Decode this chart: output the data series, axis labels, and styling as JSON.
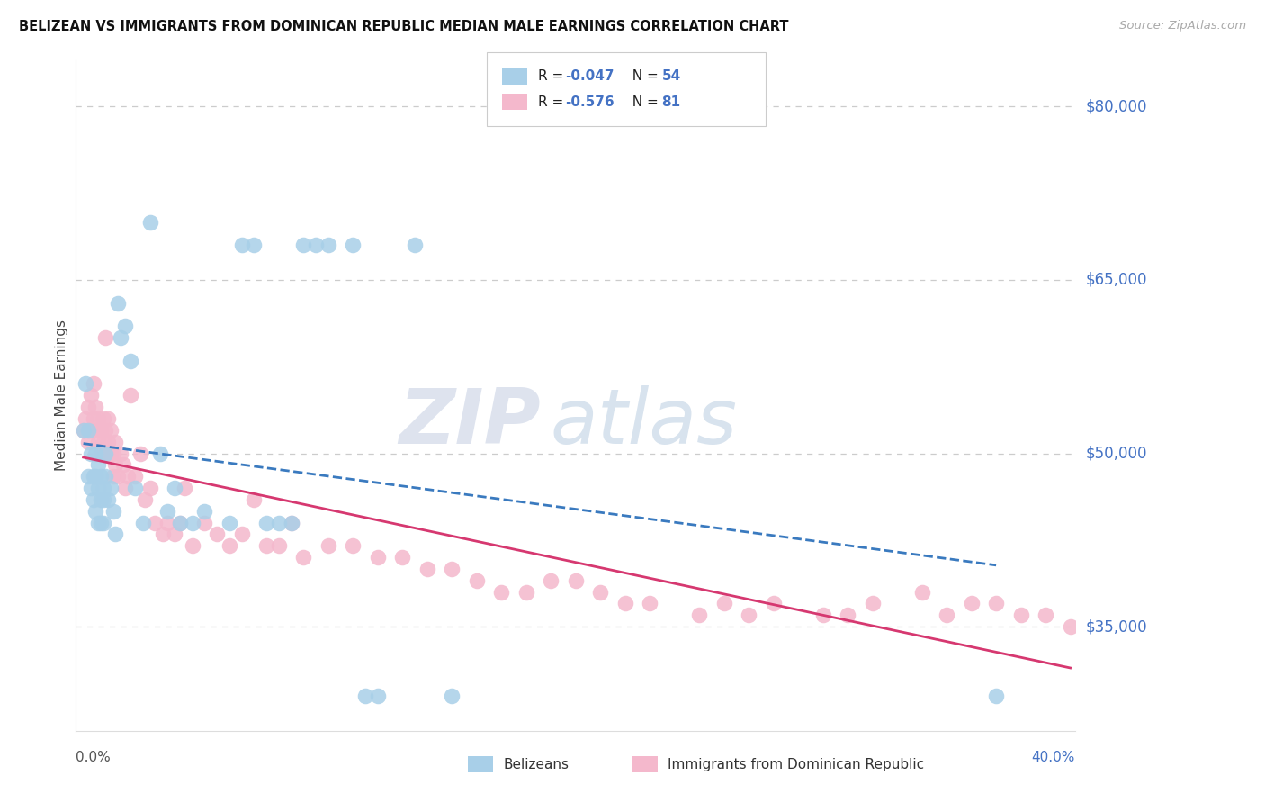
{
  "title": "BELIZEAN VS IMMIGRANTS FROM DOMINICAN REPUBLIC MEDIAN MALE EARNINGS CORRELATION CHART",
  "source": "Source: ZipAtlas.com",
  "ylabel": "Median Male Earnings",
  "yticks": [
    35000,
    50000,
    65000,
    80000
  ],
  "ytick_labels": [
    "$35,000",
    "$50,000",
    "$65,000",
    "$80,000"
  ],
  "xlim": [
    -0.002,
    0.402
  ],
  "ylim": [
    26000,
    84000
  ],
  "watermark_zip": "ZIP",
  "watermark_atlas": "atlas",
  "r1": "-0.047",
  "n1": "54",
  "r2": "-0.576",
  "n2": "81",
  "color_blue": "#a8cfe8",
  "color_pink": "#f4b8cc",
  "color_blue_line": "#3a7abf",
  "color_pink_line": "#d63870",
  "color_blue_text": "#4472C4",
  "color_gray_text": "#aaaaaa",
  "background": "#ffffff",
  "blue_x": [
    0.001,
    0.002,
    0.003,
    0.003,
    0.004,
    0.004,
    0.005,
    0.005,
    0.006,
    0.006,
    0.006,
    0.007,
    0.007,
    0.007,
    0.008,
    0.008,
    0.008,
    0.009,
    0.009,
    0.009,
    0.01,
    0.01,
    0.011,
    0.012,
    0.013,
    0.014,
    0.015,
    0.016,
    0.018,
    0.02,
    0.022,
    0.025,
    0.028,
    0.032,
    0.035,
    0.038,
    0.04,
    0.045,
    0.05,
    0.06,
    0.065,
    0.07,
    0.075,
    0.08,
    0.085,
    0.09,
    0.095,
    0.1,
    0.11,
    0.115,
    0.12,
    0.135,
    0.15,
    0.37
  ],
  "blue_y": [
    52000,
    56000,
    48000,
    52000,
    47000,
    50000,
    48000,
    46000,
    50000,
    48000,
    45000,
    49000,
    47000,
    44000,
    48000,
    46000,
    44000,
    47000,
    46000,
    44000,
    50000,
    48000,
    46000,
    47000,
    45000,
    43000,
    63000,
    60000,
    61000,
    58000,
    47000,
    44000,
    70000,
    50000,
    45000,
    47000,
    44000,
    44000,
    45000,
    44000,
    68000,
    68000,
    44000,
    44000,
    44000,
    68000,
    68000,
    68000,
    68000,
    29000,
    29000,
    68000,
    29000,
    29000
  ],
  "pink_x": [
    0.001,
    0.002,
    0.003,
    0.003,
    0.004,
    0.004,
    0.005,
    0.005,
    0.006,
    0.006,
    0.007,
    0.007,
    0.008,
    0.008,
    0.009,
    0.009,
    0.01,
    0.01,
    0.011,
    0.011,
    0.012,
    0.012,
    0.013,
    0.013,
    0.014,
    0.014,
    0.015,
    0.016,
    0.017,
    0.018,
    0.019,
    0.02,
    0.022,
    0.024,
    0.026,
    0.028,
    0.03,
    0.033,
    0.035,
    0.038,
    0.04,
    0.042,
    0.045,
    0.05,
    0.055,
    0.06,
    0.065,
    0.07,
    0.075,
    0.08,
    0.085,
    0.09,
    0.1,
    0.11,
    0.12,
    0.13,
    0.14,
    0.15,
    0.16,
    0.17,
    0.18,
    0.19,
    0.2,
    0.21,
    0.22,
    0.23,
    0.25,
    0.26,
    0.27,
    0.28,
    0.3,
    0.31,
    0.32,
    0.34,
    0.35,
    0.36,
    0.37,
    0.38,
    0.39,
    0.4,
    0.01
  ],
  "pink_y": [
    52000,
    53000,
    51000,
    54000,
    52000,
    55000,
    53000,
    56000,
    52000,
    54000,
    51000,
    53000,
    50000,
    52000,
    51000,
    53000,
    50000,
    52000,
    51000,
    53000,
    50000,
    52000,
    48000,
    50000,
    49000,
    51000,
    48000,
    50000,
    49000,
    47000,
    48000,
    55000,
    48000,
    50000,
    46000,
    47000,
    44000,
    43000,
    44000,
    43000,
    44000,
    47000,
    42000,
    44000,
    43000,
    42000,
    43000,
    46000,
    42000,
    42000,
    44000,
    41000,
    42000,
    42000,
    41000,
    41000,
    40000,
    40000,
    39000,
    38000,
    38000,
    39000,
    39000,
    38000,
    37000,
    37000,
    36000,
    37000,
    36000,
    37000,
    36000,
    36000,
    37000,
    38000,
    36000,
    37000,
    37000,
    36000,
    36000,
    35000,
    60000
  ]
}
